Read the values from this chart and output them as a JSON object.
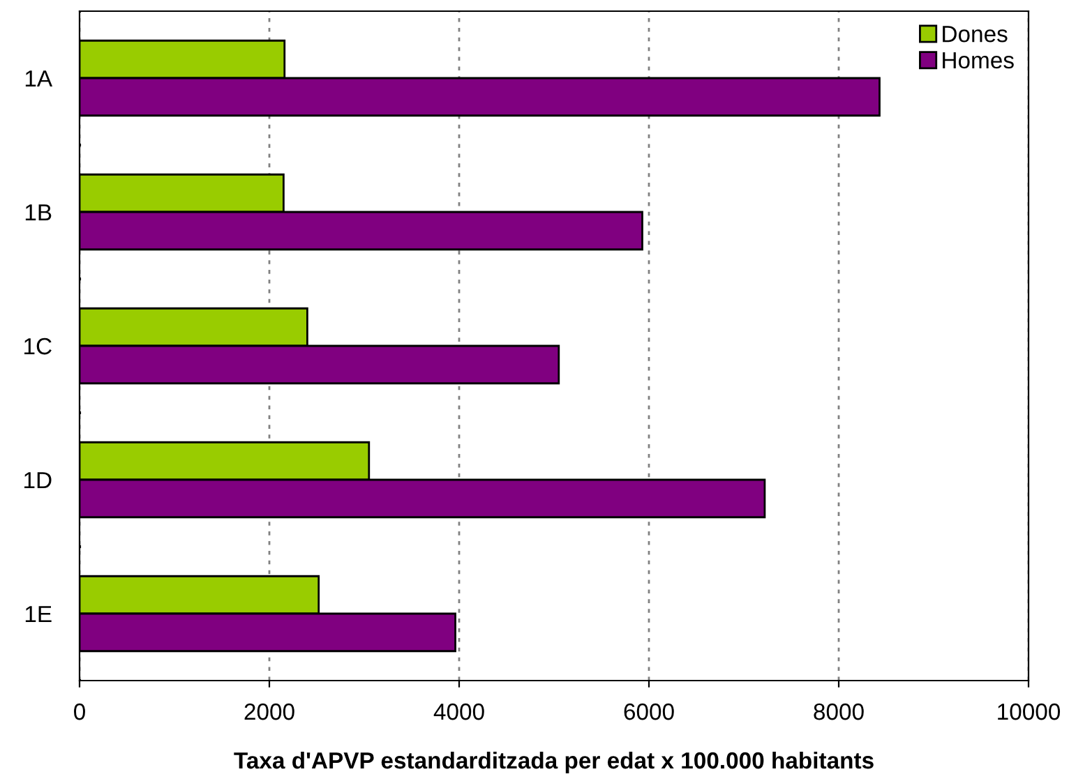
{
  "chart_data": {
    "type": "bar",
    "orientation": "horizontal",
    "xlabel": "Taxa d'APVP estandarditzada per edat x 100.000 habitants",
    "categories": [
      "1A",
      "1B",
      "1C",
      "1D",
      "1E"
    ],
    "series": [
      {
        "name": "Dones",
        "color": "#99cc00",
        "values": [
          2160,
          2150,
          2400,
          3050,
          2520
        ]
      },
      {
        "name": "Homes",
        "color": "#800080",
        "values": [
          8430,
          5930,
          5050,
          7220,
          3960
        ]
      }
    ],
    "xlim": [
      0,
      10000
    ],
    "xticks": [
      0,
      2000,
      4000,
      6000,
      8000,
      10000
    ],
    "grid": "x",
    "legend": "top right"
  }
}
